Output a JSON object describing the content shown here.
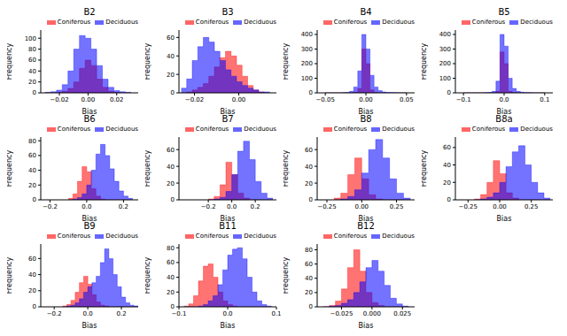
{
  "chart_data": [
    {
      "type": "histogram",
      "title": "B2",
      "x_label": "Bias",
      "y_label": "Frequency",
      "legend": "upper right",
      "bins": [
        -0.03,
        -0.026,
        -0.022,
        -0.018,
        -0.014,
        -0.01,
        -0.006,
        -0.002,
        0.002,
        0.006,
        0.01,
        0.014,
        0.018,
        0.022,
        0.026,
        0.03
      ],
      "series": [
        {
          "name": "Coniferous",
          "color": "#ff0000",
          "values": [
            0,
            0,
            1,
            3,
            8,
            20,
            45,
            60,
            50,
            25,
            10,
            3,
            1,
            0,
            0
          ]
        },
        {
          "name": "Deciduous",
          "color": "#0000ff",
          "values": [
            1,
            2,
            5,
            15,
            40,
            80,
            105,
            100,
            80,
            50,
            25,
            10,
            4,
            2,
            1
          ]
        }
      ],
      "xlim": [
        -0.033,
        0.035
      ],
      "xticks": [
        {
          "value": -0.02,
          "label": "−0.02"
        },
        {
          "value": 0,
          "label": "0.00"
        },
        0.02
      ],
      "ylim": [
        0,
        115
      ],
      "yticks": [
        0,
        20,
        40,
        60,
        80,
        100
      ]
    },
    {
      "type": "histogram",
      "title": "B3",
      "x_label": "Bias",
      "y_label": "Frequency",
      "legend": "upper right",
      "bins": [
        -0.026,
        -0.0235,
        -0.021,
        -0.0185,
        -0.016,
        -0.0135,
        -0.011,
        -0.0085,
        -0.006,
        -0.0035,
        -0.001,
        0.0015,
        0.004,
        0.0065,
        0.009,
        0.0115,
        0.014
      ],
      "series": [
        {
          "name": "Coniferous",
          "color": "#ff0000",
          "values": [
            0,
            1,
            3,
            6,
            10,
            18,
            28,
            38,
            45,
            40,
            30,
            18,
            8,
            3,
            1,
            0
          ]
        },
        {
          "name": "Deciduous",
          "color": "#0000ff",
          "values": [
            5,
            15,
            35,
            50,
            60,
            55,
            45,
            35,
            25,
            18,
            12,
            8,
            5,
            3,
            1,
            1
          ]
        }
      ],
      "xlim": [
        -0.027,
        0.017
      ],
      "xticks": [
        {
          "value": -0.02,
          "label": "−0.02"
        },
        {
          "value": 0,
          "label": "0.00"
        }
      ],
      "ylim": [
        0,
        68
      ],
      "yticks": [
        0,
        20,
        40,
        60
      ]
    },
    {
      "type": "histogram",
      "title": "B4",
      "x_label": "Bias",
      "y_label": "Frequency",
      "legend": "upper right",
      "bins": [
        -0.05,
        -0.045,
        -0.04,
        -0.035,
        -0.03,
        -0.025,
        -0.02,
        -0.015,
        -0.01,
        -0.005,
        0,
        0.005,
        0.01,
        0.015,
        0.02,
        0.025,
        0.03,
        0.035,
        0.04,
        0.045,
        0.05
      ],
      "series": [
        {
          "name": "Coniferous",
          "color": "#ff0000",
          "values": [
            0,
            0,
            0,
            0,
            0,
            0,
            1,
            5,
            30,
            300,
            200,
            20,
            3,
            0,
            0,
            0,
            0,
            0,
            0,
            0
          ]
        },
        {
          "name": "Deciduous",
          "color": "#0000ff",
          "values": [
            0,
            0,
            0,
            0,
            1,
            3,
            10,
            40,
            150,
            400,
            300,
            120,
            40,
            15,
            6,
            3,
            2,
            1,
            0,
            0
          ]
        }
      ],
      "xlim": [
        -0.06,
        0.06
      ],
      "xticks": [
        {
          "value": -0.05,
          "label": "−0.05"
        },
        {
          "value": 0,
          "label": "0.00"
        },
        0.05
      ],
      "ylim": [
        0,
        430
      ],
      "yticks": [
        0,
        100,
        200,
        300,
        400
      ]
    },
    {
      "type": "histogram",
      "title": "B5",
      "x_label": "Bias",
      "y_label": "Frequency",
      "legend": "upper right",
      "bins": [
        -0.1,
        -0.09,
        -0.08,
        -0.07,
        -0.06,
        -0.05,
        -0.04,
        -0.03,
        -0.02,
        -0.01,
        0,
        0.01,
        0.02,
        0.03,
        0.04,
        0.05,
        0.06,
        0.07,
        0.08,
        0.09,
        0.1
      ],
      "series": [
        {
          "name": "Coniferous",
          "color": "#ff0000",
          "values": [
            0,
            0,
            0,
            0,
            0,
            0,
            0,
            1,
            10,
            280,
            200,
            10,
            1,
            0,
            0,
            0,
            0,
            0,
            0,
            0
          ]
        },
        {
          "name": "Deciduous",
          "color": "#0000ff",
          "values": [
            0,
            0,
            0,
            0,
            0,
            1,
            3,
            10,
            80,
            400,
            320,
            100,
            30,
            10,
            4,
            2,
            1,
            0,
            0,
            0
          ]
        }
      ],
      "xlim": [
        -0.12,
        0.12
      ],
      "xticks": [
        {
          "value": -0.1,
          "label": "−0.1"
        },
        {
          "value": 0,
          "label": "0.0"
        },
        0.1
      ],
      "ylim": [
        0,
        430
      ],
      "yticks": [
        0,
        100,
        200,
        300,
        400
      ]
    },
    {
      "type": "histogram",
      "title": "B6",
      "x_label": "Bias",
      "y_label": "Frequency",
      "legend": "upper right",
      "bins": [
        -0.1,
        -0.075,
        -0.05,
        -0.025,
        0,
        0.025,
        0.05,
        0.075,
        0.1,
        0.125,
        0.15,
        0.175,
        0.2,
        0.225,
        0.25
      ],
      "series": [
        {
          "name": "Coniferous",
          "color": "#ff0000",
          "values": [
            2,
            8,
            25,
            45,
            38,
            15,
            5,
            1,
            0,
            0,
            0,
            0,
            0,
            0
          ]
        },
        {
          "name": "Deciduous",
          "color": "#0000ff",
          "values": [
            0,
            1,
            3,
            8,
            20,
            40,
            62,
            75,
            60,
            42,
            25,
            12,
            5,
            2
          ]
        }
      ],
      "xlim": [
        -0.25,
        0.28
      ],
      "xticks": [
        {
          "value": -0.2,
          "label": "−0.2"
        },
        {
          "value": 0,
          "label": "0.0"
        },
        0.2
      ],
      "ylim": [
        0,
        85
      ],
      "yticks": [
        0,
        20,
        40,
        60,
        80
      ]
    },
    {
      "type": "histogram",
      "title": "B7",
      "x_label": "Bias",
      "y_label": "Frequency",
      "legend": "upper right",
      "bins": [
        -0.2,
        -0.15,
        -0.1,
        -0.05,
        0,
        0.05,
        0.1,
        0.15,
        0.2,
        0.25,
        0.3,
        0.35
      ],
      "series": [
        {
          "name": "Coniferous",
          "color": "#ff0000",
          "values": [
            1,
            4,
            18,
            45,
            30,
            8,
            2,
            0,
            0,
            0,
            0
          ]
        },
        {
          "name": "Deciduous",
          "color": "#0000ff",
          "values": [
            0,
            1,
            3,
            10,
            30,
            58,
            70,
            48,
            22,
            8,
            2
          ]
        }
      ],
      "xlim": [
        -0.45,
        0.38
      ],
      "xticks": [
        {
          "value": -0.2,
          "label": "−0.2"
        },
        {
          "value": 0,
          "label": "0.0"
        },
        0.2
      ],
      "ylim": [
        0,
        75
      ],
      "yticks": [
        0,
        20,
        40,
        60
      ]
    },
    {
      "type": "histogram",
      "title": "B8",
      "x_label": "Bias",
      "y_label": "Frequency",
      "legend": "upper right",
      "bins": [
        -0.2,
        -0.15,
        -0.1,
        -0.05,
        0,
        0.05,
        0.1,
        0.15,
        0.2,
        0.25,
        0.3,
        0.35
      ],
      "series": [
        {
          "name": "Coniferous",
          "color": "#ff0000",
          "values": [
            2,
            8,
            30,
            50,
            25,
            6,
            1,
            0,
            0,
            0,
            0
          ]
        },
        {
          "name": "Deciduous",
          "color": "#0000ff",
          "values": [
            0,
            1,
            4,
            12,
            32,
            60,
            72,
            50,
            25,
            8,
            2
          ]
        }
      ],
      "xlim": [
        -0.32,
        0.38
      ],
      "xticks": [
        {
          "value": -0.25,
          "label": "−0.25"
        },
        {
          "value": 0,
          "label": "0.00"
        },
        0.25
      ],
      "ylim": [
        0,
        75
      ],
      "yticks": [
        0,
        20,
        40,
        60
      ]
    },
    {
      "type": "histogram",
      "title": "B8a",
      "x_label": "Bias",
      "y_label": "Frequency",
      "legend": "upper right",
      "bins": [
        -0.2,
        -0.15,
        -0.1,
        -0.05,
        0,
        0.05,
        0.1,
        0.15,
        0.2,
        0.25,
        0.3,
        0.35,
        0.4
      ],
      "series": [
        {
          "name": "Coniferous",
          "color": "#ff0000",
          "values": [
            1,
            6,
            20,
            45,
            30,
            8,
            2,
            0,
            0,
            0,
            0,
            0
          ]
        },
        {
          "name": "Deciduous",
          "color": "#0000ff",
          "values": [
            0,
            1,
            3,
            8,
            20,
            38,
            55,
            62,
            40,
            20,
            8,
            2
          ]
        }
      ],
      "xlim": [
        -0.35,
        0.42
      ],
      "xticks": [
        {
          "value": -0.25,
          "label": "−0.25"
        },
        {
          "value": 0,
          "label": "0.00"
        },
        0.25
      ],
      "ylim": [
        0,
        72
      ],
      "yticks": [
        0,
        20,
        40,
        60
      ]
    },
    {
      "type": "histogram",
      "title": "B9",
      "x_label": "Bias",
      "y_label": "Frequency",
      "legend": "upper right",
      "bins": [
        -0.15,
        -0.125,
        -0.1,
        -0.075,
        -0.05,
        -0.025,
        0,
        0.025,
        0.05,
        0.075,
        0.1,
        0.125,
        0.15,
        0.175,
        0.2,
        0.225,
        0.25,
        0.275,
        0.3
      ],
      "series": [
        {
          "name": "Coniferous",
          "color": "#ff0000",
          "values": [
            1,
            3,
            8,
            18,
            30,
            38,
            28,
            15,
            6,
            2,
            1,
            0,
            0,
            0,
            0,
            0,
            0,
            0
          ]
        },
        {
          "name": "Deciduous",
          "color": "#0000ff",
          "values": [
            0,
            1,
            2,
            5,
            10,
            18,
            25,
            30,
            38,
            55,
            72,
            60,
            40,
            25,
            12,
            5,
            2,
            1
          ]
        }
      ],
      "xlim": [
        -0.28,
        0.3
      ],
      "xticks": [
        {
          "value": -0.2,
          "label": "−0.2"
        },
        {
          "value": 0,
          "label": "0.0"
        },
        0.2
      ],
      "ylim": [
        0,
        78
      ],
      "yticks": [
        0,
        20,
        40,
        60
      ]
    },
    {
      "type": "histogram",
      "title": "B11",
      "x_label": "Bias",
      "y_label": "Frequency",
      "legend": "upper right",
      "bins": [
        -0.09,
        -0.08,
        -0.07,
        -0.06,
        -0.05,
        -0.04,
        -0.03,
        -0.02,
        -0.01,
        0,
        0.01,
        0.02,
        0.03,
        0.04,
        0.05,
        0.06,
        0.07,
        0.08,
        0.09
      ],
      "series": [
        {
          "name": "Coniferous",
          "color": "#ff0000",
          "values": [
            1,
            4,
            15,
            35,
            55,
            58,
            40,
            20,
            8,
            3,
            1,
            0,
            0,
            0,
            0,
            0,
            0,
            0
          ]
        },
        {
          "name": "Deciduous",
          "color": "#0000ff",
          "values": [
            0,
            0,
            0,
            1,
            3,
            8,
            15,
            30,
            50,
            70,
            78,
            80,
            65,
            40,
            20,
            8,
            3,
            1
          ]
        }
      ],
      "xlim": [
        -0.1,
        0.1
      ],
      "xticks": [
        {
          "value": -0.1,
          "label": "−0.1"
        },
        {
          "value": 0,
          "label": "0.0"
        },
        0.1
      ],
      "ylim": [
        0,
        85
      ],
      "yticks": [
        0,
        20,
        40,
        60,
        80
      ]
    },
    {
      "type": "histogram",
      "title": "B12",
      "x_label": "Bias",
      "y_label": "Frequency",
      "legend": "upper right",
      "bins": [
        -0.04,
        -0.035,
        -0.03,
        -0.025,
        -0.02,
        -0.015,
        -0.01,
        -0.005,
        0,
        0.005,
        0.01,
        0.015,
        0.02,
        0.025,
        0.03
      ],
      "series": [
        {
          "name": "Coniferous",
          "color": "#ff0000",
          "values": [
            0,
            2,
            8,
            25,
            55,
            80,
            50,
            20,
            6,
            2,
            0,
            0,
            0,
            0
          ]
        },
        {
          "name": "Deciduous",
          "color": "#0000ff",
          "values": [
            0,
            1,
            2,
            5,
            10,
            20,
            35,
            55,
            65,
            50,
            30,
            12,
            4,
            1
          ]
        }
      ],
      "xlim": [
        -0.045,
        0.035
      ],
      "xticks": [
        {
          "value": -0.025,
          "label": "−0.025"
        },
        {
          "value": 0,
          "label": "0.000"
        },
        0.025
      ],
      "ylim": [
        0,
        88
      ],
      "yticks": [
        0,
        20,
        40,
        60,
        80
      ]
    }
  ]
}
